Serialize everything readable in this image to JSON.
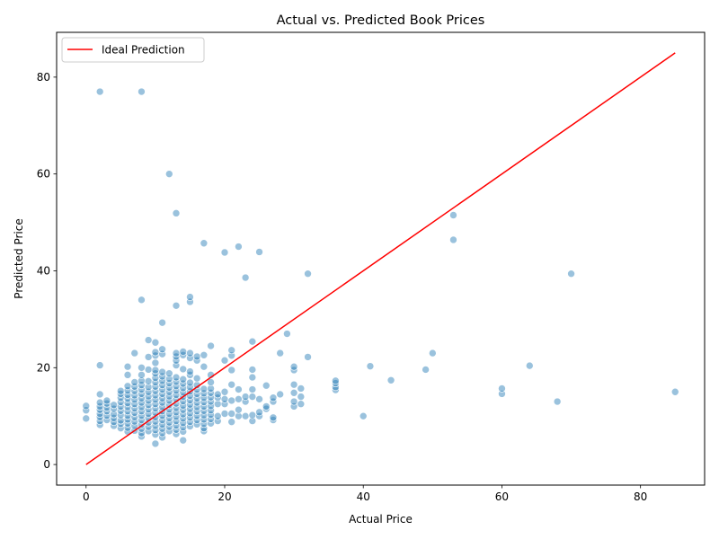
{
  "chart_data": {
    "type": "scatter",
    "title": "Actual vs. Predicted Book Prices",
    "xlabel": "Actual Price",
    "ylabel": "Predicted Price",
    "xlim": [
      -4.25,
      89.25
    ],
    "ylim": [
      -4.25,
      89.25
    ],
    "xticks": [
      0,
      20,
      40,
      60,
      80
    ],
    "yticks": [
      0,
      20,
      40,
      60,
      80
    ],
    "grid": false,
    "legend": {
      "placement": "top-left",
      "entries": [
        "Ideal Prediction"
      ]
    },
    "colors": {
      "points": "#1f77b4",
      "points_edge": "#ffffff",
      "ideal_line": "#ff0000"
    },
    "ideal_line": {
      "x": [
        0,
        85
      ],
      "y": [
        0,
        85
      ]
    },
    "series": [
      {
        "points": [
          [
            0,
            9.5
          ],
          [
            0,
            11.2
          ],
          [
            0,
            12.1
          ],
          [
            2,
            8.2
          ],
          [
            2,
            9.0
          ],
          [
            2,
            9.8
          ],
          [
            2,
            10.5
          ],
          [
            2,
            11.3
          ],
          [
            2,
            12.0
          ],
          [
            2,
            12.8
          ],
          [
            2,
            14.5
          ],
          [
            2,
            20.5
          ],
          [
            2,
            77
          ],
          [
            3,
            9.2
          ],
          [
            3,
            10.1
          ],
          [
            3,
            11.0
          ],
          [
            3,
            11.8
          ],
          [
            3,
            12.6
          ],
          [
            3,
            13.2
          ],
          [
            4,
            8.0
          ],
          [
            4,
            8.8
          ],
          [
            4,
            9.6
          ],
          [
            4,
            10.4
          ],
          [
            4,
            11.5
          ],
          [
            4,
            12.3
          ],
          [
            5,
            7.5
          ],
          [
            5,
            8.4
          ],
          [
            5,
            9.1
          ],
          [
            5,
            10.2
          ],
          [
            5,
            11.1
          ],
          [
            5,
            12.0
          ],
          [
            5,
            12.9
          ],
          [
            5,
            13.8
          ],
          [
            5,
            14.6
          ],
          [
            5,
            15.2
          ],
          [
            6,
            6.8
          ],
          [
            6,
            7.6
          ],
          [
            6,
            8.5
          ],
          [
            6,
            9.3
          ],
          [
            6,
            10.1
          ],
          [
            6,
            11.0
          ],
          [
            6,
            11.9
          ],
          [
            6,
            12.7
          ],
          [
            6,
            13.6
          ],
          [
            6,
            14.4
          ],
          [
            6,
            15.3
          ],
          [
            6,
            16.2
          ],
          [
            6,
            18.5
          ],
          [
            6,
            20.2
          ],
          [
            7,
            7.0
          ],
          [
            7,
            8.0
          ],
          [
            7,
            8.9
          ],
          [
            7,
            9.8
          ],
          [
            7,
            10.7
          ],
          [
            7,
            11.6
          ],
          [
            7,
            12.5
          ],
          [
            7,
            13.4
          ],
          [
            7,
            14.3
          ],
          [
            7,
            15.2
          ],
          [
            7,
            16.1
          ],
          [
            7,
            17.0
          ],
          [
            7,
            23.0
          ],
          [
            8,
            5.8
          ],
          [
            8,
            6.5
          ],
          [
            8,
            7.4
          ],
          [
            8,
            8.3
          ],
          [
            8,
            9.2
          ],
          [
            8,
            10.1
          ],
          [
            8,
            11.0
          ],
          [
            8,
            11.9
          ],
          [
            8,
            12.8
          ],
          [
            8,
            13.7
          ],
          [
            8,
            14.6
          ],
          [
            8,
            15.5
          ],
          [
            8,
            16.4
          ],
          [
            8,
            17.3
          ],
          [
            8,
            18.5
          ],
          [
            8,
            20.0
          ],
          [
            8,
            34.0
          ],
          [
            8,
            77
          ],
          [
            9,
            6.9
          ],
          [
            9,
            7.8
          ],
          [
            9,
            8.7
          ],
          [
            9,
            9.6
          ],
          [
            9,
            10.5
          ],
          [
            9,
            11.4
          ],
          [
            9,
            12.3
          ],
          [
            9,
            13.2
          ],
          [
            9,
            14.1
          ],
          [
            9,
            15.0
          ],
          [
            9,
            16.0
          ],
          [
            9,
            17.2
          ],
          [
            9,
            19.6
          ],
          [
            9,
            22.2
          ],
          [
            9,
            25.7
          ],
          [
            10,
            4.3
          ],
          [
            10,
            6.2
          ],
          [
            10,
            7.1
          ],
          [
            10,
            8.0
          ],
          [
            10,
            8.9
          ],
          [
            10,
            9.8
          ],
          [
            10,
            10.7
          ],
          [
            10,
            11.6
          ],
          [
            10,
            12.5
          ],
          [
            10,
            13.4
          ],
          [
            10,
            14.3
          ],
          [
            10,
            15.2
          ],
          [
            10,
            16.1
          ],
          [
            10,
            17.0
          ],
          [
            10,
            17.9
          ],
          [
            10,
            18.8
          ],
          [
            10,
            19.5
          ],
          [
            10,
            21.0
          ],
          [
            10,
            22.5
          ],
          [
            10,
            23.2
          ],
          [
            10,
            25.2
          ],
          [
            11,
            5.6
          ],
          [
            11,
            6.5
          ],
          [
            11,
            7.4
          ],
          [
            11,
            8.3
          ],
          [
            11,
            9.2
          ],
          [
            11,
            10.1
          ],
          [
            11,
            11.0
          ],
          [
            11,
            11.9
          ],
          [
            11,
            12.8
          ],
          [
            11,
            13.7
          ],
          [
            11,
            14.6
          ],
          [
            11,
            15.5
          ],
          [
            11,
            16.4
          ],
          [
            11,
            17.3
          ],
          [
            11,
            18.2
          ],
          [
            11,
            19.1
          ],
          [
            11,
            22.8
          ],
          [
            11,
            23.8
          ],
          [
            11,
            29.3
          ],
          [
            12,
            6.9
          ],
          [
            12,
            7.8
          ],
          [
            12,
            8.7
          ],
          [
            12,
            9.6
          ],
          [
            12,
            10.5
          ],
          [
            12,
            11.4
          ],
          [
            12,
            12.3
          ],
          [
            12,
            13.2
          ],
          [
            12,
            14.1
          ],
          [
            12,
            15.0
          ],
          [
            12,
            15.9
          ],
          [
            12,
            16.8
          ],
          [
            12,
            17.7
          ],
          [
            12,
            18.8
          ],
          [
            12,
            60
          ],
          [
            13,
            6.3
          ],
          [
            13,
            7.2
          ],
          [
            13,
            8.1
          ],
          [
            13,
            9.0
          ],
          [
            13,
            9.9
          ],
          [
            13,
            10.8
          ],
          [
            13,
            11.7
          ],
          [
            13,
            12.6
          ],
          [
            13,
            13.5
          ],
          [
            13,
            14.4
          ],
          [
            13,
            15.3
          ],
          [
            13,
            16.2
          ],
          [
            13,
            17.1
          ],
          [
            13,
            18.0
          ],
          [
            13,
            20.5
          ],
          [
            13,
            21.5
          ],
          [
            13,
            22.3
          ],
          [
            13,
            23.0
          ],
          [
            13,
            32.8
          ],
          [
            13,
            51.9
          ],
          [
            14,
            5.0
          ],
          [
            14,
            6.8
          ],
          [
            14,
            7.7
          ],
          [
            14,
            8.6
          ],
          [
            14,
            9.5
          ],
          [
            14,
            10.4
          ],
          [
            14,
            11.3
          ],
          [
            14,
            12.2
          ],
          [
            14,
            13.1
          ],
          [
            14,
            14.0
          ],
          [
            14,
            14.9
          ],
          [
            14,
            15.8
          ],
          [
            14,
            16.7
          ],
          [
            14,
            17.6
          ],
          [
            14,
            19.7
          ],
          [
            14,
            22.6
          ],
          [
            14,
            23.3
          ],
          [
            15,
            7.9
          ],
          [
            15,
            8.8
          ],
          [
            15,
            9.7
          ],
          [
            15,
            10.6
          ],
          [
            15,
            11.5
          ],
          [
            15,
            12.4
          ],
          [
            15,
            13.3
          ],
          [
            15,
            14.2
          ],
          [
            15,
            15.1
          ],
          [
            15,
            16.0
          ],
          [
            15,
            16.9
          ],
          [
            15,
            18.5
          ],
          [
            15,
            19.2
          ],
          [
            15,
            22.0
          ],
          [
            15,
            23.0
          ],
          [
            15,
            33.6
          ],
          [
            15,
            34.6
          ],
          [
            16,
            8.3
          ],
          [
            16,
            9.2
          ],
          [
            16,
            10.1
          ],
          [
            16,
            11.0
          ],
          [
            16,
            11.9
          ],
          [
            16,
            12.8
          ],
          [
            16,
            13.7
          ],
          [
            16,
            14.6
          ],
          [
            16,
            15.5
          ],
          [
            16,
            16.4
          ],
          [
            16,
            17.8
          ],
          [
            16,
            21.5
          ],
          [
            16,
            22.3
          ],
          [
            17,
            6.9
          ],
          [
            17,
            7.5
          ],
          [
            17,
            8.4
          ],
          [
            17,
            9.3
          ],
          [
            17,
            10.2
          ],
          [
            17,
            11.1
          ],
          [
            17,
            12.0
          ],
          [
            17,
            12.9
          ],
          [
            17,
            13.8
          ],
          [
            17,
            14.7
          ],
          [
            17,
            15.6
          ],
          [
            17,
            20.2
          ],
          [
            17,
            22.6
          ],
          [
            17,
            45.7
          ],
          [
            18,
            8.5
          ],
          [
            18,
            9.4
          ],
          [
            18,
            10.3
          ],
          [
            18,
            11.2
          ],
          [
            18,
            12.1
          ],
          [
            18,
            13.0
          ],
          [
            18,
            13.9
          ],
          [
            18,
            14.8
          ],
          [
            18,
            15.7
          ],
          [
            18,
            17.0
          ],
          [
            18,
            18.5
          ],
          [
            18,
            24.5
          ],
          [
            19,
            9.0
          ],
          [
            19,
            10.0
          ],
          [
            19,
            12.5
          ],
          [
            19,
            13.8
          ],
          [
            19,
            14.5
          ],
          [
            20,
            10.5
          ],
          [
            20,
            12.5
          ],
          [
            20,
            13.5
          ],
          [
            20,
            15.0
          ],
          [
            20,
            21.5
          ],
          [
            20,
            43.8
          ],
          [
            21,
            8.8
          ],
          [
            21,
            10.5
          ],
          [
            21,
            13.2
          ],
          [
            21,
            16.5
          ],
          [
            21,
            19.5
          ],
          [
            21,
            22.5
          ],
          [
            21,
            23.6
          ],
          [
            22,
            10.0
          ],
          [
            22,
            11.3
          ],
          [
            22,
            13.5
          ],
          [
            22,
            15.5
          ],
          [
            22,
            45.0
          ],
          [
            23,
            10.0
          ],
          [
            23,
            13.0
          ],
          [
            23,
            14.0
          ],
          [
            23,
            38.6
          ],
          [
            24,
            9.0
          ],
          [
            24,
            10.2
          ],
          [
            24,
            14.0
          ],
          [
            24,
            15.5
          ],
          [
            24,
            18.0
          ],
          [
            24,
            19.6
          ],
          [
            24,
            25.4
          ],
          [
            25,
            10.0
          ],
          [
            25,
            10.8
          ],
          [
            25,
            13.5
          ],
          [
            25,
            43.9
          ],
          [
            26,
            11.5
          ],
          [
            26,
            12.0
          ],
          [
            26,
            16.3
          ],
          [
            27,
            9.2
          ],
          [
            27,
            9.7
          ],
          [
            27,
            13.0
          ],
          [
            27,
            13.8
          ],
          [
            28,
            14.5
          ],
          [
            28,
            23.0
          ],
          [
            29,
            27.0
          ],
          [
            30,
            12.0
          ],
          [
            30,
            13.0
          ],
          [
            30,
            14.8
          ],
          [
            30,
            16.5
          ],
          [
            30,
            19.5
          ],
          [
            30,
            20.2
          ],
          [
            31,
            12.5
          ],
          [
            31,
            14.0
          ],
          [
            31,
            15.7
          ],
          [
            32,
            22.2
          ],
          [
            32,
            39.4
          ],
          [
            36,
            15.4
          ],
          [
            36,
            16.0
          ],
          [
            36,
            16.8
          ],
          [
            36,
            17.3
          ],
          [
            40,
            10.0
          ],
          [
            41,
            20.3
          ],
          [
            44,
            17.4
          ],
          [
            49,
            19.6
          ],
          [
            50,
            23.0
          ],
          [
            53,
            46.4
          ],
          [
            53,
            51.5
          ],
          [
            60,
            14.6
          ],
          [
            60,
            15.7
          ],
          [
            64,
            20.4
          ],
          [
            68,
            13.0
          ],
          [
            70,
            39.4
          ],
          [
            85,
            15.0
          ]
        ]
      }
    ]
  }
}
